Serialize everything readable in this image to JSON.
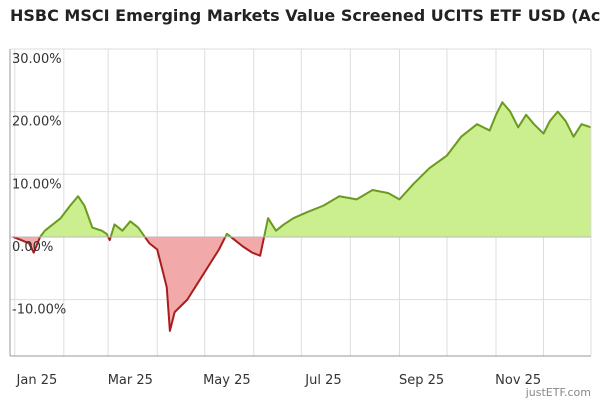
{
  "colors": {
    "positive_line": "#6a9a1f",
    "positive_fill": "#cbee8e",
    "negative_line": "#a81e1e",
    "negative_fill": "#f2a9a9",
    "grid": "#dddddd",
    "axis": "#999999"
  },
  "watermark": "justETF.com",
  "chart_data": {
    "type": "area",
    "title": "HSBC MSCI Emerging Markets Value Screened UCITS ETF USD (Acc)",
    "xlabel": "",
    "ylabel": "",
    "x_start": "2024-12-29",
    "x_end": "2025-12-31",
    "ylim": [
      -19,
      30
    ],
    "yticks": [
      30,
      20,
      10,
      0,
      -10
    ],
    "ytick_labels": [
      "30.00%",
      "20.00%",
      "10.00%",
      "0.00%",
      "-10.00%"
    ],
    "xticks": [
      "2025-01-15",
      "2025-03-15",
      "2025-05-15",
      "2025-07-15",
      "2025-09-15",
      "2025-11-15"
    ],
    "xtick_labels": [
      "Jan 25",
      "Mar 25",
      "May 25",
      "Jul 25",
      "Sep 25",
      "Nov 25"
    ],
    "grid": true,
    "series": [
      {
        "x": [
          "2024-12-31",
          "2025-01-05",
          "2025-01-10",
          "2025-01-13",
          "2025-01-17",
          "2025-01-20",
          "2025-01-25",
          "2025-01-30",
          "2025-02-05",
          "2025-02-10",
          "2025-02-14",
          "2025-02-19",
          "2025-02-25",
          "2025-02-28",
          "2025-03-02",
          "2025-03-05",
          "2025-03-10",
          "2025-03-15",
          "2025-03-20",
          "2025-03-27",
          "2025-04-01",
          "2025-04-04",
          "2025-04-07",
          "2025-04-09",
          "2025-04-12",
          "2025-04-16",
          "2025-04-20",
          "2025-04-25",
          "2025-04-30",
          "2025-05-05",
          "2025-05-10",
          "2025-05-15",
          "2025-05-20",
          "2025-05-25",
          "2025-05-31",
          "2025-06-05",
          "2025-06-10",
          "2025-06-15",
          "2025-06-20",
          "2025-06-26",
          "2025-07-05",
          "2025-07-15",
          "2025-07-25",
          "2025-08-05",
          "2025-08-15",
          "2025-08-25",
          "2025-09-01",
          "2025-09-10",
          "2025-09-20",
          "2025-10-01",
          "2025-10-10",
          "2025-10-20",
          "2025-10-28",
          "2025-11-01",
          "2025-11-05",
          "2025-11-10",
          "2025-11-15",
          "2025-11-20",
          "2025-11-25",
          "2025-12-01",
          "2025-12-05",
          "2025-12-10",
          "2025-12-15",
          "2025-12-20",
          "2025-12-25",
          "2025-12-31"
        ],
        "y": [
          0.0,
          -0.5,
          -1.0,
          -2.5,
          0.0,
          1.0,
          2.0,
          3.0,
          5.0,
          6.5,
          5.0,
          1.5,
          1.0,
          0.5,
          -0.5,
          2.0,
          1.0,
          2.5,
          1.5,
          -1.0,
          -2.0,
          -5.0,
          -8.0,
          -15.0,
          -12.0,
          -11.0,
          -10.0,
          -8.0,
          -6.0,
          -4.0,
          -2.0,
          0.5,
          -0.5,
          -1.5,
          -2.5,
          -3.0,
          3.0,
          1.0,
          2.0,
          3.0,
          4.0,
          5.0,
          6.5,
          6.0,
          7.5,
          7.0,
          6.0,
          8.5,
          11.0,
          13.0,
          16.0,
          18.0,
          17.0,
          19.5,
          21.5,
          20.0,
          17.5,
          19.5,
          18.0,
          16.5,
          18.5,
          20.0,
          18.5,
          16.0,
          18.0,
          17.5
        ]
      }
    ]
  }
}
